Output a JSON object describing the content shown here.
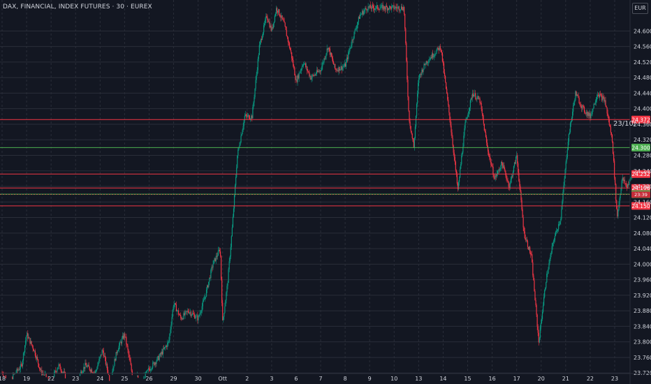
{
  "header": {
    "symbol_title": "DAX, FINANCIAL, INDEX FUTURES · 30 · EUREX",
    "currency_button": "EUR"
  },
  "annotation": {
    "date_label": "23/10/"
  },
  "chart_data": {
    "type": "candlestick",
    "currency": "EUR",
    "timeframe": "30",
    "ylim": [
      23700,
      24660
    ],
    "y_ticks": [
      23720,
      23760,
      23800,
      23840,
      23880,
      23920,
      23960,
      24000,
      24040,
      24080,
      24120,
      24160,
      24200,
      24240,
      24280,
      24320,
      24360,
      24400,
      24440,
      24480,
      24520,
      24560,
      24600
    ],
    "y_tick_labels": [
      "23.720",
      "23.760",
      "23.800",
      "23.840",
      "23.880",
      "23.920",
      "23.960",
      "24.000",
      "24.040",
      "24.080",
      "24.120",
      "24.160",
      "24.200",
      "24.240",
      "24.280",
      "24.320",
      "24.360",
      "24.400",
      "24.440",
      "24.480",
      "24.520",
      "24.560",
      "24.600"
    ],
    "x_labels": [
      "18",
      "19",
      "22",
      "23",
      "24",
      "25",
      "26",
      "29",
      "30",
      "Ott",
      "2",
      "3",
      "6",
      "7",
      "8",
      "9",
      "10",
      "13",
      "14",
      "15",
      "16",
      "17",
      "20",
      "21",
      "22",
      "23"
    ],
    "horizontal_levels": [
      {
        "value": 24372,
        "label": "24.372",
        "color": "#f23645"
      },
      {
        "value": 24300,
        "label": "24.300",
        "color": "#4caf50"
      },
      {
        "value": 24232,
        "label": "24.232",
        "color": "#f23645"
      },
      {
        "value": 24196,
        "label": "24.196",
        "color": "#f23645"
      },
      {
        "value": 24180,
        "label": "24.180",
        "color": "#4caf50"
      },
      {
        "value": 24150,
        "label": "24.150",
        "color": "#f23645"
      }
    ],
    "current_price": {
      "value": 24179,
      "label": "23:39",
      "color": "#f23645"
    },
    "price_path": [
      [
        0,
        23720
      ],
      [
        0.3,
        23700
      ],
      [
        0.8,
        23740
      ],
      [
        1,
        23820
      ],
      [
        1.3,
        23780
      ],
      [
        1.6,
        23720
      ],
      [
        2,
        23700
      ],
      [
        2.3,
        23740
      ],
      [
        2.7,
        23700
      ],
      [
        3,
        23700
      ],
      [
        3.4,
        23740
      ],
      [
        3.8,
        23720
      ],
      [
        4.1,
        23780
      ],
      [
        4.4,
        23700
      ],
      [
        4.7,
        23780
      ],
      [
        5,
        23820
      ],
      [
        5.3,
        23720
      ],
      [
        5.7,
        23700
      ],
      [
        6,
        23730
      ],
      [
        6.4,
        23760
      ],
      [
        6.8,
        23800
      ],
      [
        7,
        23900
      ],
      [
        7.3,
        23860
      ],
      [
        7.6,
        23880
      ],
      [
        8,
        23860
      ],
      [
        8.3,
        23920
      ],
      [
        8.6,
        24000
      ],
      [
        8.9,
        24040
      ],
      [
        9,
        23850
      ],
      [
        9.2,
        23950
      ],
      [
        9.4,
        24100
      ],
      [
        9.6,
        24280
      ],
      [
        9.9,
        24380
      ],
      [
        10.2,
        24380
      ],
      [
        10.5,
        24560
      ],
      [
        10.8,
        24640
      ],
      [
        11,
        24600
      ],
      [
        11.2,
        24660
      ],
      [
        11.5,
        24620
      ],
      [
        11.8,
        24540
      ],
      [
        12,
        24470
      ],
      [
        12.3,
        24520
      ],
      [
        12.6,
        24480
      ],
      [
        13,
        24500
      ],
      [
        13.3,
        24560
      ],
      [
        13.6,
        24500
      ],
      [
        14,
        24510
      ],
      [
        14.3,
        24580
      ],
      [
        14.6,
        24640
      ],
      [
        14.9,
        24660
      ],
      [
        15.2,
        24660
      ],
      [
        15.5,
        24660
      ],
      [
        15.9,
        24660
      ],
      [
        16.2,
        24660
      ],
      [
        16.4,
        24660
      ],
      [
        16.6,
        24380
      ],
      [
        16.8,
        24300
      ],
      [
        17,
        24480
      ],
      [
        17.3,
        24520
      ],
      [
        17.6,
        24540
      ],
      [
        17.9,
        24560
      ],
      [
        18.1,
        24460
      ],
      [
        18.3,
        24360
      ],
      [
        18.6,
        24190
      ],
      [
        18.9,
        24360
      ],
      [
        19.2,
        24440
      ],
      [
        19.5,
        24420
      ],
      [
        19.8,
        24300
      ],
      [
        20.1,
        24220
      ],
      [
        20.4,
        24260
      ],
      [
        20.7,
        24200
      ],
      [
        21,
        24280
      ],
      [
        21.3,
        24080
      ],
      [
        21.6,
        24020
      ],
      [
        21.9,
        23800
      ],
      [
        22.2,
        23960
      ],
      [
        22.5,
        24060
      ],
      [
        22.8,
        24120
      ],
      [
        23.1,
        24320
      ],
      [
        23.4,
        24440
      ],
      [
        23.7,
        24400
      ],
      [
        24,
        24380
      ],
      [
        24.3,
        24440
      ],
      [
        24.6,
        24420
      ],
      [
        24.9,
        24320
      ],
      [
        25.1,
        24120
      ],
      [
        25.3,
        24220
      ],
      [
        25.5,
        24200
      ],
      [
        25.8,
        24240
      ]
    ]
  },
  "colors": {
    "background": "#131722",
    "grid": "#2a2e39",
    "up": "#089981",
    "down": "#f23645",
    "text": "#d1d4dc"
  }
}
